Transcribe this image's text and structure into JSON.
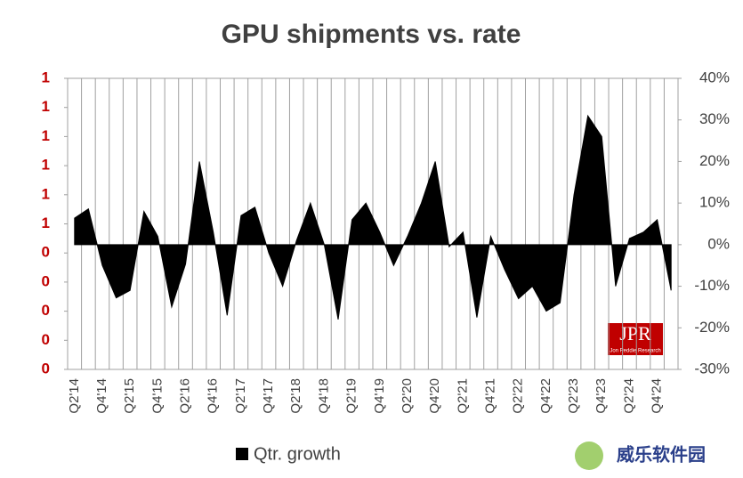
{
  "chart_data": {
    "type": "area",
    "title": "GPU shipments vs. rate",
    "categories": [
      "Q2'14",
      null,
      "Q4'14",
      null,
      "Q2'15",
      null,
      "Q4'15",
      null,
      "Q2'16",
      null,
      "Q4'16",
      null,
      "Q2'17",
      null,
      "Q4'17",
      null,
      "Q2'18",
      null,
      "Q4'18",
      null,
      "Q2'19",
      null,
      "Q4'19",
      null,
      "Q2'20",
      null,
      "Q4'20",
      null,
      "Q2'21",
      null,
      "Q4'21",
      null,
      "Q2'22",
      null,
      "Q4'22",
      null,
      "Q2'23",
      null,
      "Q4'23",
      null,
      "Q2'24",
      null,
      "Q4'24",
      null
    ],
    "series": [
      {
        "name": "Qtr. growth",
        "color": "#000000",
        "axis": "y2",
        "values": [
          6.4,
          8.6,
          -5,
          -12.8,
          -11,
          8,
          2,
          -15,
          -4.7,
          20,
          3,
          -17,
          7,
          9,
          -2,
          -10,
          1,
          10,
          0,
          -18,
          6,
          10,
          3,
          -5,
          2,
          10,
          20,
          -0.5,
          3,
          -17.5,
          2,
          -6,
          -13,
          -10,
          -16,
          -14,
          12,
          31,
          26,
          -10,
          1.5,
          3,
          6,
          -11
        ]
      }
    ],
    "ylim": [
      0,
      1
    ],
    "yticks": [
      {
        "value": 0,
        "label": "0"
      },
      {
        "value": 0.1,
        "label": "0"
      },
      {
        "value": 0.2,
        "label": "0"
      },
      {
        "value": 0.3,
        "label": "0"
      },
      {
        "value": 0.4,
        "label": "0"
      },
      {
        "value": 0.5,
        "label": "1"
      },
      {
        "value": 0.6,
        "label": "1"
      },
      {
        "value": 0.7,
        "label": "1"
      },
      {
        "value": 0.8,
        "label": "1"
      },
      {
        "value": 0.9,
        "label": "1"
      },
      {
        "value": 1,
        "label": "1"
      }
    ],
    "y_tick_color": "#c00000",
    "y2lim": [
      -30,
      40
    ],
    "y2ticks": [
      {
        "value": -30,
        "label": "-30%"
      },
      {
        "value": -20,
        "label": "-20%"
      },
      {
        "value": -10,
        "label": "-10%"
      },
      {
        "value": 0,
        "label": "0%"
      },
      {
        "value": 10,
        "label": "10%"
      },
      {
        "value": 20,
        "label": "20%"
      },
      {
        "value": 30,
        "label": "30%"
      },
      {
        "value": 40,
        "label": "40%"
      }
    ],
    "grid": true,
    "legend": "bottom-left",
    "logo": "JPR",
    "logo_subtitle": "Jon Peddie Research",
    "watermark": "威乐软件园"
  }
}
